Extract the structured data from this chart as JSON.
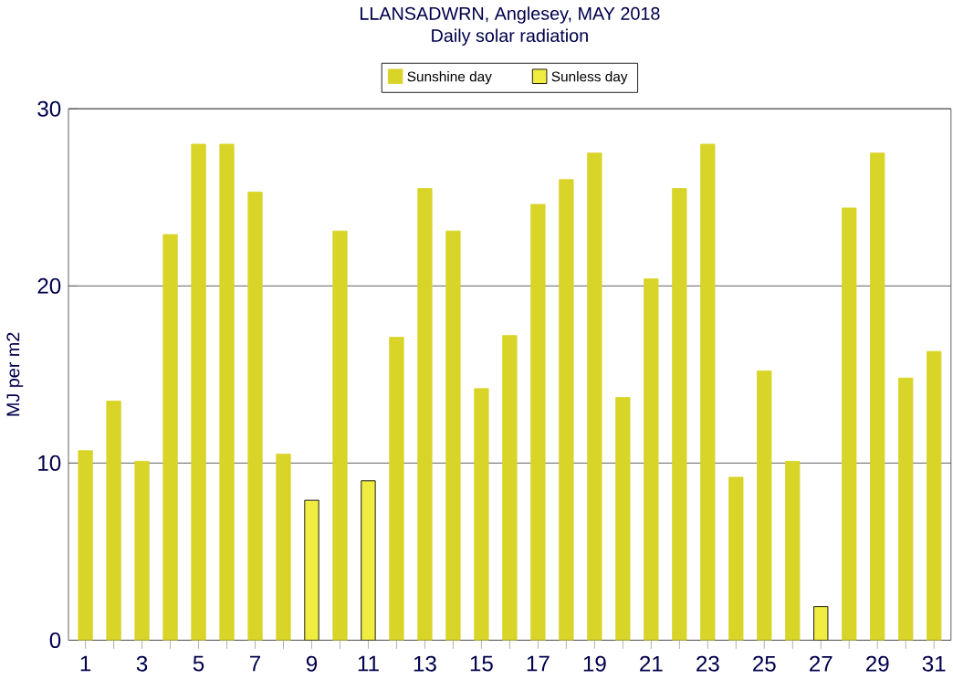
{
  "chart_data": {
    "type": "bar",
    "title": "LLANSADWRN, Anglesey, MAY 2018",
    "subtitle": "Daily solar radiation",
    "ylabel": "MJ per m2",
    "categories": [
      "1",
      null,
      "3",
      null,
      "5",
      null,
      "7",
      null,
      "9",
      null,
      "11",
      null,
      "13",
      null,
      "15",
      null,
      "17",
      null,
      "19",
      null,
      "21",
      null,
      "23",
      null,
      "25",
      null,
      "27",
      null,
      "29",
      null,
      "31"
    ],
    "series": [
      {
        "name": "Sunshine day",
        "color": "#d8d428",
        "values": [
          10.7,
          13.5,
          10.1,
          22.9,
          28,
          28,
          25.3,
          10.5,
          null,
          23.1,
          null,
          17.1,
          25.5,
          23.1,
          14.2,
          17.2,
          24.6,
          26.0,
          27.5,
          13.7,
          20.4,
          25.5,
          28.0,
          9.2,
          15.2,
          10.1,
          null,
          24.4,
          27.5,
          14.8,
          16.3
        ]
      },
      {
        "name": "Sunless day",
        "color": "#f0ec40",
        "values": [
          null,
          null,
          null,
          null,
          null,
          null,
          null,
          null,
          7.9,
          null,
          9.0,
          null,
          null,
          null,
          null,
          null,
          null,
          null,
          null,
          null,
          null,
          null,
          null,
          null,
          null,
          null,
          1.9,
          null,
          null,
          null,
          null
        ]
      }
    ],
    "ylim": [
      0,
      30
    ],
    "yticks": [
      0,
      10,
      20,
      30
    ],
    "grid": "y",
    "legend": "top"
  }
}
